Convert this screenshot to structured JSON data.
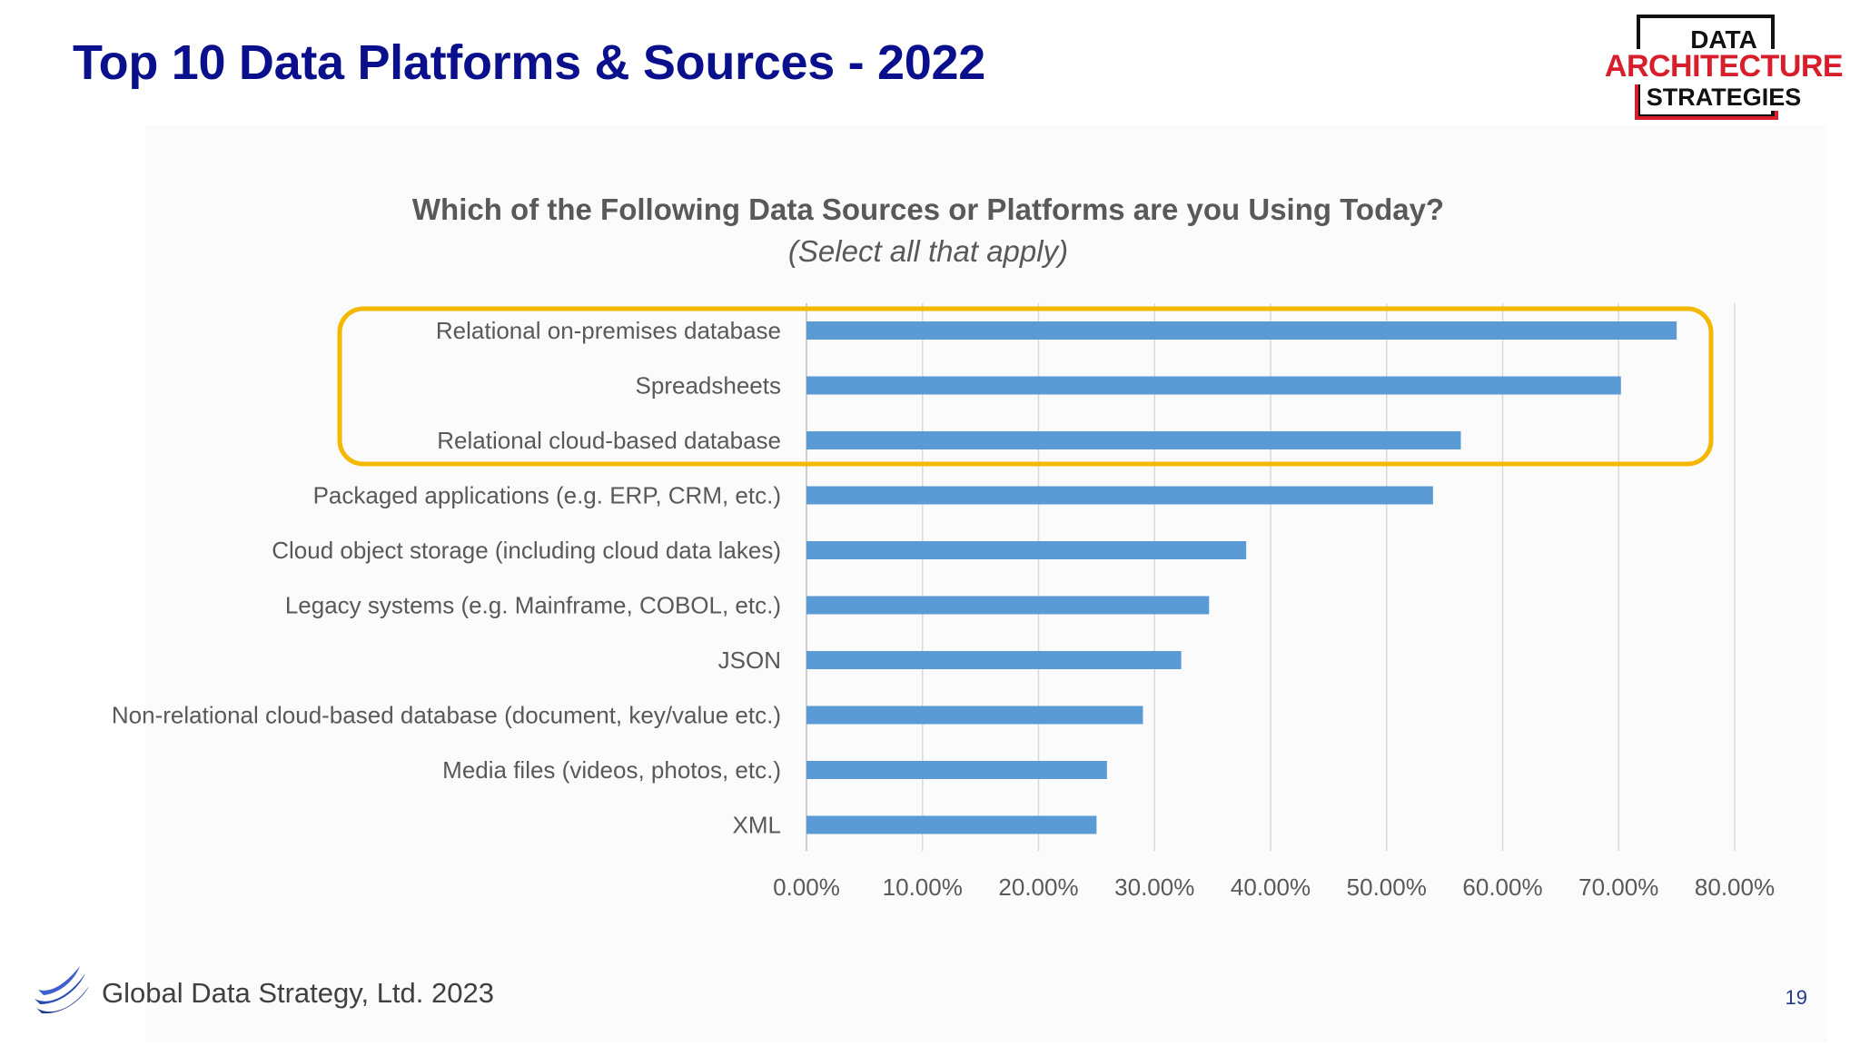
{
  "slide": {
    "title": "Top 10 Data Platforms & Sources - 2022",
    "footer": "Global Data Strategy, Ltd. 2023",
    "page_number": "19"
  },
  "brand_logo": {
    "line1": "DATA",
    "line2": "ARCHITECTURE",
    "line3": "STRATEGIES"
  },
  "colors": {
    "title": "#0a0f8c",
    "bar": "#5b9bd5",
    "highlight": "#f5b800",
    "brand_red": "#d81e2a"
  },
  "chart_data": {
    "type": "bar",
    "orientation": "horizontal",
    "title": "Which of the Following Data Sources or Platforms are you Using Today?",
    "subtitle": "(Select all that apply)",
    "categories": [
      "Relational on-premises database",
      "Spreadsheets",
      "Relational cloud-based database",
      "Packaged applications (e.g. ERP, CRM, etc.)",
      "Cloud object storage (including cloud data lakes)",
      "Legacy systems (e.g. Mainframe, COBOL, etc.)",
      "JSON",
      "Non-relational cloud-based database (document, key/value etc.)",
      "Media files (videos, photos, etc.)",
      "XML"
    ],
    "values": [
      75.0,
      70.2,
      56.4,
      54.0,
      37.9,
      34.7,
      32.3,
      29.0,
      25.9,
      25.0
    ],
    "xlim": [
      0,
      80
    ],
    "xticks": [
      "0.00%",
      "10.00%",
      "20.00%",
      "30.00%",
      "40.00%",
      "50.00%",
      "60.00%",
      "70.00%",
      "80.00%"
    ],
    "grid": true,
    "highlighted_categories": [
      "Relational on-premises database",
      "Spreadsheets",
      "Relational cloud-based database"
    ]
  }
}
